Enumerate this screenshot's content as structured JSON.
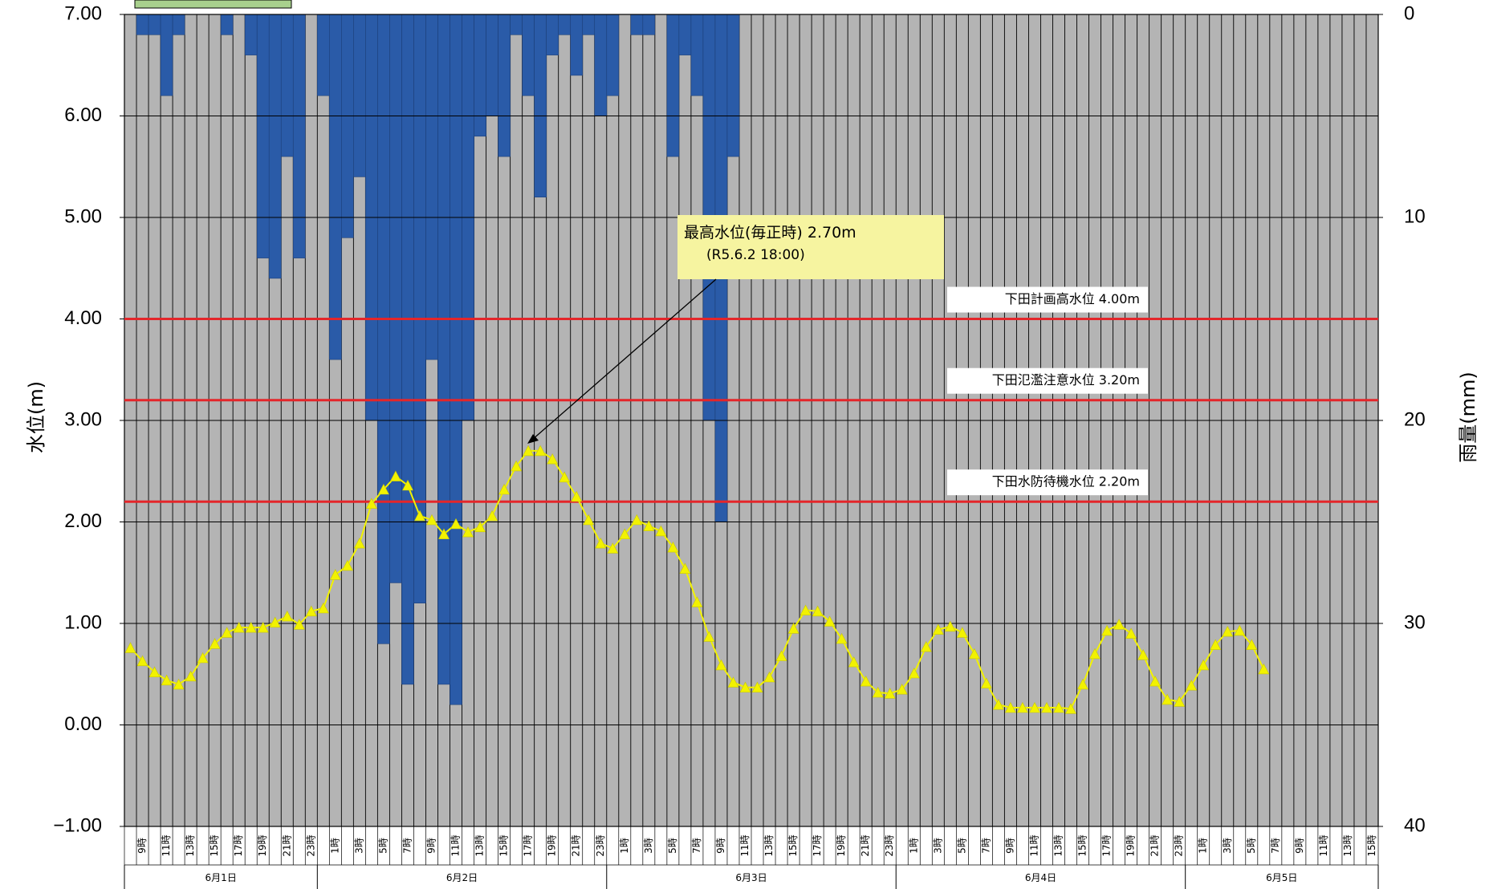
{
  "chart_data": {
    "type": "bar+line",
    "left_axis": {
      "title": "水位(m)",
      "range": [
        -1,
        7
      ],
      "ticks": [
        "7.00",
        "6.00",
        "5.00",
        "4.00",
        "3.00",
        "2.00",
        "1.00",
        "0.00",
        "−1.00"
      ]
    },
    "right_axis": {
      "title": "雨量(mm)",
      "range": [
        0,
        40
      ],
      "inverted": true,
      "ticks": [
        "0",
        "10",
        "20",
        "30",
        "40"
      ]
    },
    "time_start": "6/1 8:00",
    "interval_hours": 1,
    "hourly_labels": [
      "9時",
      "11時",
      "13時",
      "15時",
      "17時",
      "19時",
      "21時",
      "23時",
      "1時",
      "3時",
      "5時",
      "7時",
      "9時",
      "11時",
      "13時",
      "15時",
      "17時",
      "19時",
      "21時",
      "23時",
      "1時",
      "3時",
      "5時",
      "7時",
      "9時",
      "11時",
      "13時",
      "15時",
      "17時",
      "19時",
      "21時",
      "23時",
      "1時",
      "3時",
      "5時",
      "7時",
      "9時",
      "11時",
      "13時",
      "15時",
      "17時",
      "19時",
      "21時",
      "23時",
      "1時",
      "3時",
      "5時",
      "7時",
      "9時",
      "11時",
      "13時",
      "15時"
    ],
    "days": [
      {
        "label": "6月1日"
      },
      {
        "label": "6月2日"
      },
      {
        "label": "6月3日"
      },
      {
        "label": "6月4日"
      },
      {
        "label": "6月5日"
      }
    ],
    "rainfall": [
      0,
      1,
      1,
      4,
      1,
      0,
      0,
      0,
      1,
      0,
      2,
      12,
      13,
      7,
      12,
      0,
      4,
      17,
      11,
      8,
      20,
      31,
      28,
      33,
      29,
      17,
      33,
      34,
      20,
      6,
      5,
      7,
      1,
      4,
      9,
      2,
      1,
      3,
      1,
      5,
      4,
      0,
      1,
      1,
      0,
      7,
      2,
      4,
      20,
      25,
      7,
      0,
      0,
      0,
      0,
      0,
      0,
      0,
      0,
      0,
      0,
      0,
      0,
      0,
      0,
      0,
      0,
      0,
      0,
      0,
      0,
      0,
      0,
      0,
      0,
      0,
      0,
      0,
      0,
      0,
      0,
      0,
      0,
      0,
      0,
      0,
      0,
      0,
      0,
      0,
      0,
      0,
      0,
      0,
      0,
      0,
      0,
      0,
      0,
      0,
      0,
      0,
      0,
      0,
      0,
      0,
      0,
      0,
      0,
      0,
      0,
      0,
      0,
      0,
      0,
      0,
      0,
      0,
      0,
      0,
      0,
      0,
      0,
      0,
      0,
      0,
      0,
      0,
      0,
      0,
      0,
      0,
      0,
      0,
      0,
      0,
      0,
      0,
      0,
      0,
      0,
      0,
      0,
      0
    ],
    "water_level": [
      0.76,
      0.63,
      0.52,
      0.44,
      0.4,
      0.48,
      0.66,
      0.8,
      0.91,
      0.96,
      0.96,
      0.96,
      1.01,
      1.07,
      0.99,
      1.12,
      1.15,
      1.48,
      1.57,
      1.79,
      2.18,
      2.32,
      2.45,
      2.36,
      2.06,
      2.02,
      1.88,
      1.98,
      1.9,
      1.95,
      2.06,
      2.32,
      2.55,
      2.7,
      2.7,
      2.62,
      2.44,
      2.25,
      2.02,
      1.79,
      1.74,
      1.88,
      2.02,
      1.96,
      1.91,
      1.75,
      1.54,
      1.21,
      0.87,
      0.59,
      0.42,
      0.37,
      0.37,
      0.47,
      0.68,
      0.95,
      1.13,
      1.12,
      1.02,
      0.85,
      0.62,
      0.43,
      0.32,
      0.31,
      0.35,
      0.51,
      0.77,
      0.94,
      0.97,
      0.91,
      0.7,
      0.41,
      0.2,
      0.17,
      0.17,
      0.17,
      0.17,
      0.17,
      0.16,
      0.4,
      0.7,
      0.93,
      0.99,
      0.9,
      0.69,
      0.43,
      0.25,
      0.23,
      0.39,
      0.59,
      0.79,
      0.92,
      0.93,
      0.79,
      0.55
    ],
    "reference_lines": [
      {
        "label": "下田計画高水位  4.00m",
        "value": 4.0
      },
      {
        "label": "下田氾濫注意水位  3.20m",
        "value": 3.2
      },
      {
        "label": "下田水防待機水位  2.20m",
        "value": 2.2
      }
    ],
    "annotation": {
      "line1": "最高水位(毎正時)  2.70m",
      "line2": "(R5.6.2  18:00)",
      "point_hour_index": 33
    },
    "colors": {
      "plot_bg": "#b4b4b4",
      "rain": "#2a5ba8",
      "level_line": "#f2f200",
      "ref_line": "#e4262a",
      "annotation_bg": "#f6f4a0",
      "legend_swatch": "#a8d08d"
    }
  }
}
